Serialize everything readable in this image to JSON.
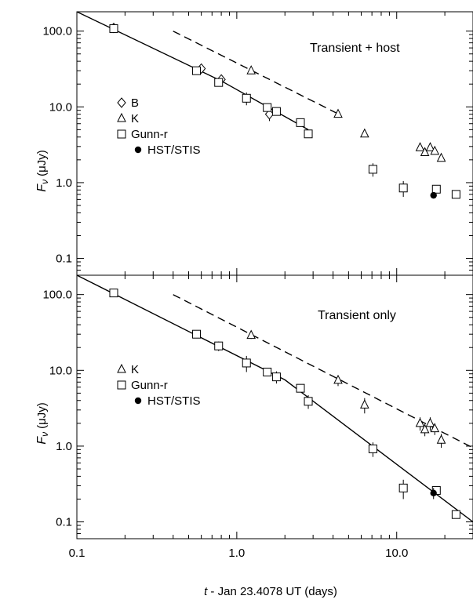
{
  "chart_data": [
    {
      "type": "scatter",
      "annotation": "Transient + host",
      "xlabel": "",
      "ylabel_main": "F",
      "ylabel_sub": "ν",
      "ylabel_unit": "(μJy)",
      "x_scale": "log",
      "y_scale": "log",
      "xlim": [
        0.1,
        30
      ],
      "ylim": [
        0.06,
        180
      ],
      "y_ticks": [
        {
          "value": 0.1,
          "label": "0.1"
        },
        {
          "value": 1,
          "label": "1.0"
        },
        {
          "value": 10,
          "label": "10.0"
        },
        {
          "value": 100,
          "label": "100.0"
        }
      ],
      "legend": [
        {
          "marker": "diamond",
          "label": "B"
        },
        {
          "marker": "triangle",
          "label": "K"
        },
        {
          "marker": "square",
          "label": "Gunn-r"
        },
        {
          "marker": "filled-circle",
          "label": "HST/STIS"
        }
      ],
      "series": [
        {
          "name": "B",
          "marker": "diamond",
          "points": [
            [
              0.17,
              110,
              0
            ],
            [
              0.6,
              32,
              0
            ],
            [
              0.8,
              23,
              0
            ],
            [
              1.6,
              8,
              1.5
            ]
          ]
        },
        {
          "name": "K",
          "marker": "triangle",
          "points": [
            [
              1.23,
              30,
              0
            ],
            [
              4.3,
              8,
              0
            ],
            [
              6.3,
              4.4,
              0
            ],
            [
              14.0,
              2.9,
              0
            ],
            [
              15.0,
              2.5,
              0
            ],
            [
              16.2,
              2.9,
              0
            ],
            [
              17.3,
              2.6,
              0
            ],
            [
              19.0,
              2.1,
              0
            ]
          ]
        },
        {
          "name": "Gunn-r",
          "marker": "square",
          "points": [
            [
              0.17,
              108,
              0
            ],
            [
              0.56,
              30,
              0
            ],
            [
              0.77,
              21,
              2
            ],
            [
              1.15,
              13,
              2.5
            ],
            [
              1.55,
              9.8,
              0
            ],
            [
              1.77,
              8.7,
              0
            ],
            [
              2.5,
              6.2,
              0
            ],
            [
              2.8,
              4.4,
              0
            ],
            [
              7.1,
              1.5,
              0.3
            ],
            [
              11.0,
              0.85,
              0.2
            ],
            [
              17.7,
              0.82,
              0
            ],
            [
              23.5,
              0.7,
              0
            ]
          ]
        },
        {
          "name": "HST/STIS",
          "marker": "filled-circle",
          "points": [
            [
              17.0,
              0.68,
              0
            ]
          ]
        }
      ],
      "fit_lines": [
        {
          "style": "solid",
          "points": [
            [
              0.1,
              180
            ],
            [
              0.8,
              22
            ],
            [
              2.8,
              5
            ]
          ]
        },
        {
          "style": "dashed",
          "points": [
            [
              0.4,
              100
            ],
            [
              4.2,
              8.3
            ]
          ]
        }
      ]
    },
    {
      "type": "scatter",
      "annotation": "Transient only",
      "xlabel": "t - Jan 23.4078 UT (days)",
      "xlabel_italic_part": "t",
      "xlabel_rest": " - Jan 23.4078 UT (days)",
      "ylabel_main": "F",
      "ylabel_sub": "ν",
      "ylabel_unit": "(μJy)",
      "x_scale": "log",
      "y_scale": "log",
      "xlim": [
        0.1,
        30
      ],
      "ylim": [
        0.06,
        180
      ],
      "x_ticks": [
        {
          "value": 0.1,
          "label": "0.1"
        },
        {
          "value": 1,
          "label": "1.0"
        },
        {
          "value": 10,
          "label": "10.0"
        }
      ],
      "y_ticks": [
        {
          "value": 0.1,
          "label": "0.1"
        },
        {
          "value": 1,
          "label": "1.0"
        },
        {
          "value": 10,
          "label": "10.0"
        },
        {
          "value": 100,
          "label": "100.0"
        }
      ],
      "legend": [
        {
          "marker": "triangle",
          "label": "K"
        },
        {
          "marker": "square",
          "label": "Gunn-r"
        },
        {
          "marker": "filled-circle",
          "label": "HST/STIS"
        }
      ],
      "series": [
        {
          "name": "K",
          "marker": "triangle",
          "points": [
            [
              1.23,
              29,
              3
            ],
            [
              4.3,
              7.4,
              1.2
            ],
            [
              6.3,
              3.5,
              0.8
            ],
            [
              14.0,
              2.0,
              0.4
            ],
            [
              15.0,
              1.65,
              0.3
            ],
            [
              16.2,
              2.0,
              0.4
            ],
            [
              17.3,
              1.7,
              0.3
            ],
            [
              19.0,
              1.2,
              0.25
            ]
          ]
        },
        {
          "name": "Gunn-r",
          "marker": "square",
          "points": [
            [
              0.17,
              105,
              0
            ],
            [
              0.56,
              30,
              0
            ],
            [
              0.77,
              21,
              3
            ],
            [
              1.15,
              12.5,
              3
            ],
            [
              1.55,
              9.5,
              0
            ],
            [
              1.77,
              8.2,
              1.5
            ],
            [
              2.5,
              5.8,
              0
            ],
            [
              2.8,
              3.9,
              0.8
            ],
            [
              7.1,
              0.92,
              0.2
            ],
            [
              11.0,
              0.28,
              0.08
            ],
            [
              17.7,
              0.26,
              0
            ],
            [
              23.5,
              0.125,
              0
            ]
          ]
        },
        {
          "name": "HST/STIS",
          "marker": "filled-circle",
          "points": [
            [
              17.0,
              0.24,
              0.04
            ]
          ]
        }
      ],
      "fit_lines": [
        {
          "style": "solid",
          "points": [
            [
              0.1,
              180
            ],
            [
              2.0,
              7.5
            ],
            [
              30,
              0.1
            ]
          ]
        },
        {
          "style": "dashed",
          "points": [
            [
              0.4,
              100
            ],
            [
              30,
              0.95
            ]
          ]
        }
      ]
    }
  ]
}
